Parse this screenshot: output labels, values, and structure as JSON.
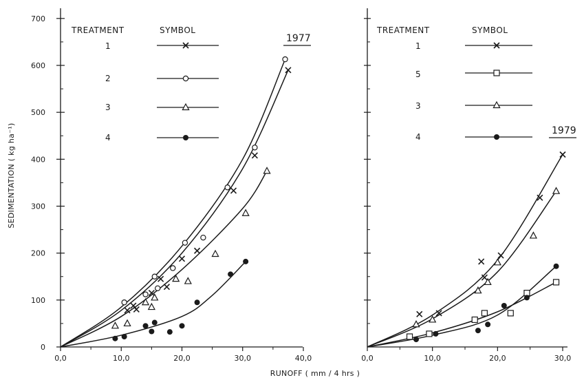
{
  "chart_data": [
    {
      "type": "scatter",
      "year_label": "1977",
      "xlim": [
        0,
        40
      ],
      "ylim": [
        0,
        700
      ],
      "x_ticks": [
        "0,0",
        "10,0",
        "20,0",
        "30,0",
        "40,0"
      ],
      "y_ticks": [
        "0",
        "100",
        "200",
        "300",
        "400",
        "500",
        "600",
        "700"
      ],
      "ylabel": "SEDIMENTATION ( kg ha⁻¹)",
      "legend": {
        "treatment_header": "TREATMENT",
        "symbol_header": "SYMBOL",
        "entries": [
          {
            "treatment": "1",
            "marker": "x"
          },
          {
            "treatment": "2",
            "marker": "circle"
          },
          {
            "treatment": "3",
            "marker": "triangle"
          },
          {
            "treatment": "4",
            "marker": "dot"
          }
        ]
      },
      "series": [
        {
          "treatment": "1",
          "marker": "x",
          "points": [
            [
              11,
              78
            ],
            [
              12,
              88
            ],
            [
              12.5,
              80
            ],
            [
              15,
              115
            ],
            [
              16.5,
              145
            ],
            [
              17.5,
              128
            ],
            [
              20,
              188
            ],
            [
              22.5,
              205
            ],
            [
              28.5,
              333
            ],
            [
              32,
              408
            ],
            [
              37.5,
              590
            ]
          ],
          "curve": [
            [
              0,
              0
            ],
            [
              10,
              78
            ],
            [
              20,
              200
            ],
            [
              30,
              380
            ],
            [
              37.5,
              590
            ]
          ]
        },
        {
          "treatment": "2",
          "marker": "circle",
          "points": [
            [
              10.5,
              95
            ],
            [
              14,
              112
            ],
            [
              15.5,
              150
            ],
            [
              16,
              125
            ],
            [
              18.5,
              168
            ],
            [
              20.5,
              222
            ],
            [
              23.5,
              233
            ],
            [
              27.5,
              340
            ],
            [
              32,
              425
            ],
            [
              37,
              613
            ]
          ],
          "curve": [
            [
              0,
              0
            ],
            [
              10,
              85
            ],
            [
              20,
              215
            ],
            [
              30,
              400
            ],
            [
              37,
              613
            ]
          ]
        },
        {
          "treatment": "3",
          "marker": "triangle",
          "points": [
            [
              9,
              45
            ],
            [
              11,
              50
            ],
            [
              14,
              95
            ],
            [
              15,
              85
            ],
            [
              15.5,
              105
            ],
            [
              19,
              145
            ],
            [
              21,
              140
            ],
            [
              25.5,
              198
            ],
            [
              30.5,
              285
            ],
            [
              34,
              375
            ]
          ],
          "curve": [
            [
              0,
              0
            ],
            [
              10,
              65
            ],
            [
              20,
              165
            ],
            [
              30,
              295
            ],
            [
              34,
              375
            ]
          ]
        },
        {
          "treatment": "4",
          "marker": "dot",
          "points": [
            [
              9,
              18
            ],
            [
              10.5,
              22
            ],
            [
              14,
              45
            ],
            [
              15,
              33
            ],
            [
              15.5,
              52
            ],
            [
              18,
              32
            ],
            [
              20,
              45
            ],
            [
              22.5,
              95
            ],
            [
              28,
              155
            ],
            [
              30.5,
              182
            ]
          ],
          "curve": [
            [
              0,
              0
            ],
            [
              10,
              25
            ],
            [
              20,
              65
            ],
            [
              25,
              110
            ],
            [
              30.5,
              182
            ]
          ]
        }
      ]
    },
    {
      "type": "scatter",
      "year_label": "1979",
      "xlim": [
        0,
        30
      ],
      "ylim": [
        0,
        700
      ],
      "x_ticks": [
        "0,0",
        "10,0",
        "20,0",
        "30,0"
      ],
      "xlabel": "RUNOFF ( mm / 4 hrs )",
      "legend": {
        "treatment_header": "TREATMENT",
        "symbol_header": "SYMBOL",
        "entries": [
          {
            "treatment": "1",
            "marker": "x"
          },
          {
            "treatment": "5",
            "marker": "square"
          },
          {
            "treatment": "3",
            "marker": "triangle"
          },
          {
            "treatment": "4",
            "marker": "dot"
          }
        ]
      },
      "series": [
        {
          "treatment": "1",
          "marker": "x",
          "points": [
            [
              8,
              70
            ],
            [
              11,
              72
            ],
            [
              17.5,
              182
            ],
            [
              18,
              148
            ],
            [
              20.5,
              195
            ],
            [
              26.5,
              318
            ],
            [
              30,
              410
            ]
          ],
          "curve": [
            [
              0,
              0
            ],
            [
              10,
              68
            ],
            [
              20,
              185
            ],
            [
              30,
              410
            ]
          ]
        },
        {
          "treatment": "5",
          "marker": "square",
          "points": [
            [
              6.5,
              22
            ],
            [
              9.5,
              28
            ],
            [
              16.5,
              58
            ],
            [
              18,
              72
            ],
            [
              22,
              72
            ],
            [
              24.5,
              115
            ],
            [
              29,
              138
            ]
          ],
          "curve": [
            [
              0,
              0
            ],
            [
              10,
              30
            ],
            [
              20,
              75
            ],
            [
              29,
              138
            ]
          ]
        },
        {
          "treatment": "3",
          "marker": "triangle",
          "points": [
            [
              7.5,
              48
            ],
            [
              10,
              58
            ],
            [
              17,
              120
            ],
            [
              18.5,
              138
            ],
            [
              20,
              180
            ],
            [
              25.5,
              237
            ],
            [
              29,
              332
            ]
          ],
          "curve": [
            [
              0,
              0
            ],
            [
              10,
              60
            ],
            [
              20,
              160
            ],
            [
              29,
              332
            ]
          ]
        },
        {
          "treatment": "4",
          "marker": "dot",
          "points": [
            [
              7.5,
              16
            ],
            [
              10.5,
              28
            ],
            [
              17,
              35
            ],
            [
              18.5,
              48
            ],
            [
              21,
              88
            ],
            [
              24.5,
              105
            ],
            [
              29,
              172
            ]
          ],
          "curve": [
            [
              0,
              0
            ],
            [
              10,
              25
            ],
            [
              20,
              68
            ],
            [
              29,
              172
            ]
          ]
        }
      ]
    }
  ]
}
